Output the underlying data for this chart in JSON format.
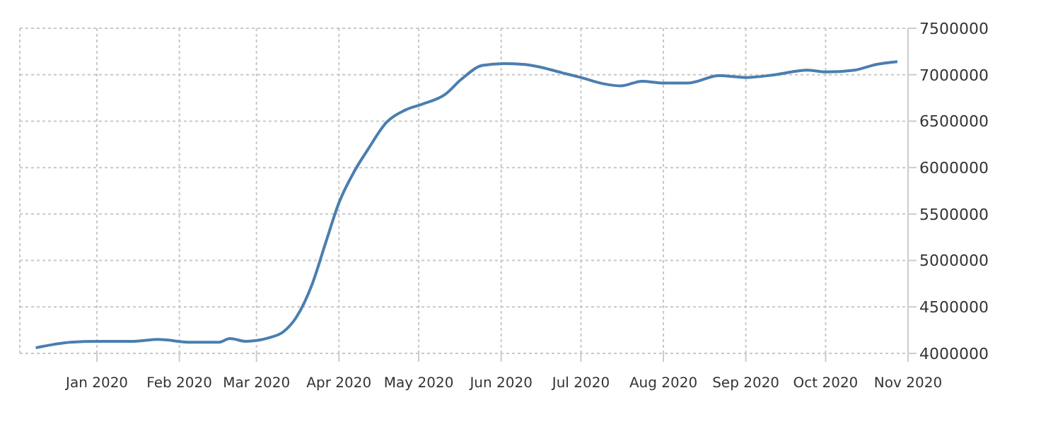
{
  "chart_data": {
    "type": "line",
    "x": [
      "2019-12-09",
      "2019-12-22",
      "2020-01-01",
      "2020-01-15",
      "2020-01-24",
      "2020-02-05",
      "2020-02-16",
      "2020-02-20",
      "2020-02-26",
      "2020-03-06",
      "2020-03-11",
      "2020-03-16",
      "2020-03-22",
      "2020-03-27",
      "2020-04-01",
      "2020-04-07",
      "2020-04-12",
      "2020-04-19",
      "2020-04-26",
      "2020-05-02",
      "2020-05-11",
      "2020-05-17",
      "2020-05-25",
      "2020-06-02",
      "2020-06-10",
      "2020-06-16",
      "2020-06-24",
      "2020-07-01",
      "2020-07-10",
      "2020-07-16",
      "2020-07-24",
      "2020-08-01",
      "2020-08-10",
      "2020-08-22",
      "2020-09-01",
      "2020-09-12",
      "2020-09-24",
      "2020-10-01",
      "2020-10-12",
      "2020-10-20",
      "2020-10-28"
    ],
    "series": [
      {
        "color": "#4a7eb0",
        "values": [
          4060000,
          4120000,
          4130000,
          4130000,
          4150000,
          4120000,
          4120000,
          4160000,
          4130000,
          4170000,
          4230000,
          4390000,
          4750000,
          5190000,
          5620000,
          5970000,
          6200000,
          6490000,
          6620000,
          6680000,
          6790000,
          6950000,
          7100000,
          7120000,
          7110000,
          7080000,
          7020000,
          6970000,
          6900000,
          6880000,
          6930000,
          6910000,
          6910000,
          6990000,
          6970000,
          7000000,
          7050000,
          7030000,
          7050000,
          7110000,
          7140000
        ]
      }
    ],
    "xlim": [
      "2019-12-03",
      "2020-11-01"
    ],
    "xticks": [
      {
        "value": "2020-01-01",
        "label": "Jan 2020"
      },
      {
        "value": "2020-02-01",
        "label": "Feb 2020"
      },
      {
        "value": "2020-03-01",
        "label": "Mar 2020"
      },
      {
        "value": "2020-04-01",
        "label": "Apr 2020"
      },
      {
        "value": "2020-05-01",
        "label": "May 2020"
      },
      {
        "value": "2020-06-01",
        "label": "Jun 2020"
      },
      {
        "value": "2020-07-01",
        "label": "Jul 2020"
      },
      {
        "value": "2020-08-01",
        "label": "Aug 2020"
      },
      {
        "value": "2020-09-01",
        "label": "Sep 2020"
      },
      {
        "value": "2020-10-01",
        "label": "Oct 2020"
      },
      {
        "value": "2020-11-01",
        "label": "Nov 2020"
      }
    ],
    "ylim": [
      4000000,
      7500000
    ],
    "yticks": [
      4000000,
      4500000,
      5000000,
      5500000,
      6000000,
      6500000,
      7000000,
      7500000
    ],
    "grid": true,
    "legend": false,
    "marker": "none",
    "line_style": "solid"
  }
}
